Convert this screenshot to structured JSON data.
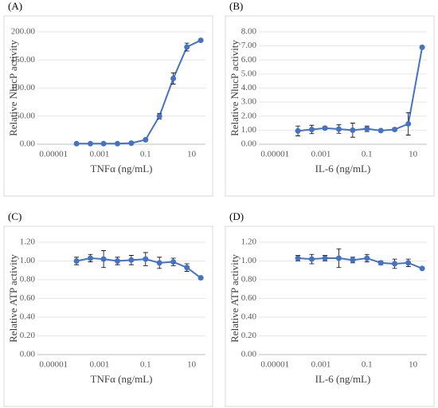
{
  "chart_data": [
    {
      "type": "line",
      "panel_label": "(A)",
      "ylabel": "Relative NlucP activity",
      "xlabel": "TNFα (ng/mL)",
      "xscale": "log",
      "x": [
        0.0001,
        0.0004,
        0.0015,
        0.006,
        0.024,
        0.1,
        0.4,
        1.6,
        6.25,
        25
      ],
      "xlim": [
        2e-06,
        40
      ],
      "xticks": [
        1e-05,
        0.001,
        0.1,
        10
      ],
      "ylim": [
        0,
        200
      ],
      "yticks": [
        {
          "value": 0,
          "label": "0.00"
        },
        {
          "value": 50,
          "label": "50.00"
        },
        {
          "value": 100,
          "label": "100.00"
        },
        {
          "value": 150,
          "label": "150.00"
        },
        {
          "value": 200,
          "label": "200.00"
        }
      ],
      "grid": true,
      "series": [
        {
          "color": "#4472c4",
          "values": [
            1,
            1,
            1,
            1,
            2,
            8,
            50,
            117,
            173,
            185
          ],
          "errors": [
            0,
            0,
            0,
            0,
            0,
            1,
            5,
            10,
            7,
            2
          ]
        }
      ]
    },
    {
      "type": "line",
      "panel_label": "(B)",
      "ylabel": "Relative NlucP activity",
      "xlabel": "IL-6 (ng/mL)",
      "xscale": "log",
      "x": [
        0.0001,
        0.0004,
        0.0015,
        0.006,
        0.024,
        0.1,
        0.4,
        1.6,
        6.25,
        25
      ],
      "xlim": [
        2e-06,
        40
      ],
      "xticks": [
        1e-05,
        0.001,
        0.1,
        10
      ],
      "ylim": [
        0,
        8
      ],
      "yticks": [
        {
          "value": 0,
          "label": "0.00"
        },
        {
          "value": 1,
          "label": "1.00"
        },
        {
          "value": 2,
          "label": "2.00"
        },
        {
          "value": 3,
          "label": "3.00"
        },
        {
          "value": 4,
          "label": "4.00"
        },
        {
          "value": 5,
          "label": "5.00"
        },
        {
          "value": 6,
          "label": "6.00"
        },
        {
          "value": 7,
          "label": "7.00"
        },
        {
          "value": 8,
          "label": "8.00"
        }
      ],
      "grid": true,
      "series": [
        {
          "color": "#4472c4",
          "values": [
            0.95,
            1.05,
            1.15,
            1.08,
            1.0,
            1.1,
            0.97,
            1.05,
            1.45,
            6.9
          ],
          "errors": [
            0.35,
            0.3,
            0.1,
            0.3,
            0.5,
            0.2,
            0.05,
            0.1,
            0.8,
            0.05
          ]
        }
      ]
    },
    {
      "type": "line",
      "panel_label": "(C)",
      "ylabel": "Relative ATP activity",
      "xlabel": "TNFα (ng/mL)",
      "xscale": "log",
      "x": [
        0.0001,
        0.0004,
        0.0015,
        0.006,
        0.024,
        0.1,
        0.4,
        1.6,
        6.25,
        25
      ],
      "xlim": [
        2e-06,
        40
      ],
      "xticks": [
        1e-05,
        0.001,
        0.1,
        10
      ],
      "ylim": [
        0,
        1.2
      ],
      "yticks": [
        {
          "value": 0,
          "label": "0.00"
        },
        {
          "value": 0.2,
          "label": "0.20"
        },
        {
          "value": 0.4,
          "label": "0.40"
        },
        {
          "value": 0.6,
          "label": "0.60"
        },
        {
          "value": 0.8,
          "label": "0.80"
        },
        {
          "value": 1,
          "label": "1.00"
        },
        {
          "value": 1.2,
          "label": "1.20"
        }
      ],
      "grid": true,
      "series": [
        {
          "color": "#4472c4",
          "values": [
            1.0,
            1.03,
            1.02,
            1.0,
            1.01,
            1.02,
            0.98,
            0.99,
            0.93,
            0.82
          ],
          "errors": [
            0.04,
            0.04,
            0.09,
            0.04,
            0.05,
            0.07,
            0.06,
            0.04,
            0.04,
            0.01
          ]
        }
      ]
    },
    {
      "type": "line",
      "panel_label": "(D)",
      "ylabel": "Relative ATP activity",
      "xlabel": "IL-6 (ng/mL)",
      "xscale": "log",
      "x": [
        0.0001,
        0.0004,
        0.0015,
        0.006,
        0.024,
        0.1,
        0.4,
        1.6,
        6.25,
        25
      ],
      "xlim": [
        2e-06,
        40
      ],
      "xticks": [
        1e-05,
        0.001,
        0.1,
        10
      ],
      "ylim": [
        0,
        1.2
      ],
      "yticks": [
        {
          "value": 0,
          "label": "0.00"
        },
        {
          "value": 0.2,
          "label": "0.20"
        },
        {
          "value": 0.4,
          "label": "0.40"
        },
        {
          "value": 0.6,
          "label": "0.60"
        },
        {
          "value": 0.8,
          "label": "0.80"
        },
        {
          "value": 1,
          "label": "1.00"
        },
        {
          "value": 1.2,
          "label": "1.20"
        }
      ],
      "grid": true,
      "series": [
        {
          "color": "#4472c4",
          "values": [
            1.03,
            1.02,
            1.03,
            1.03,
            1.01,
            1.03,
            0.98,
            0.97,
            0.98,
            0.92
          ],
          "errors": [
            0.03,
            0.05,
            0.03,
            0.1,
            0.03,
            0.04,
            0.02,
            0.05,
            0.04,
            0.01
          ]
        }
      ]
    }
  ]
}
